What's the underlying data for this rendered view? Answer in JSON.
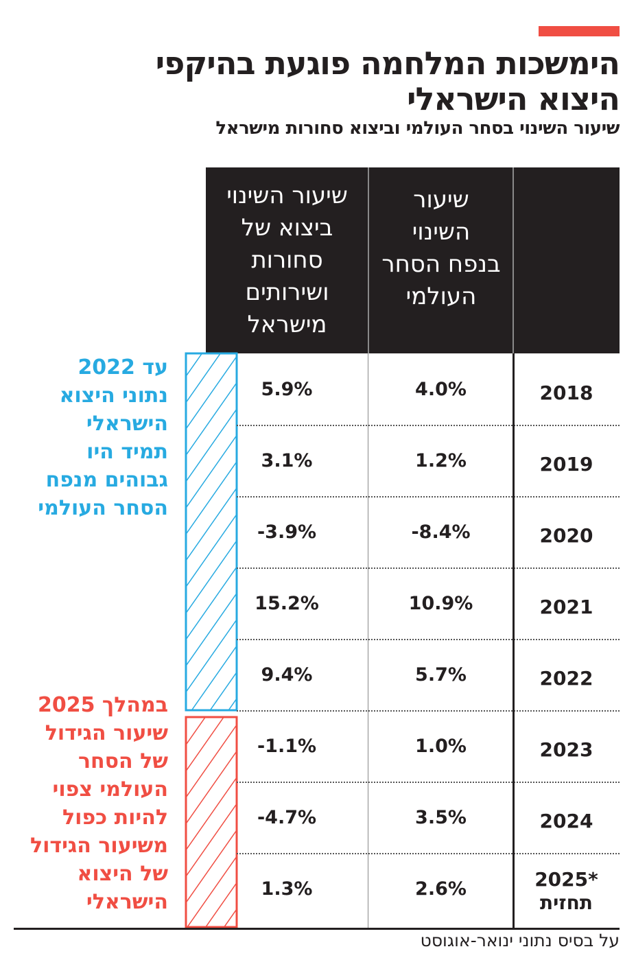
{
  "title_lines": [
    "הימשכות המלחמה פוגעת בהיקפי",
    "היצוא הישראלי"
  ],
  "subtitle": "שיעור השינוי בסחר העולמי וביצוא סחורות מישראל",
  "colors": {
    "accent_red": "#f04e43",
    "blue": "#27aae1",
    "header_bg": "#231f20"
  },
  "chart_data": {
    "type": "table",
    "columns": [
      "",
      "שיעור השינוי בנפח הסחר העולמי",
      "שיעור השינוי ביצוא של סחורות ושירותים מישראל"
    ],
    "rows": [
      {
        "year": "2018",
        "note": "",
        "world": "4.0%",
        "israel": "5.9%"
      },
      {
        "year": "2019",
        "note": "",
        "world": "1.2%",
        "israel": "3.1%"
      },
      {
        "year": "2020",
        "note": "",
        "world": "-8.4%",
        "israel": "-3.9%"
      },
      {
        "year": "2021",
        "note": "",
        "world": "10.9%",
        "israel": "15.2%"
      },
      {
        "year": "2022",
        "note": "",
        "world": "5.7%",
        "israel": "9.4%"
      },
      {
        "year": "2023",
        "note": "",
        "world": "1.0%",
        "israel": "-1.1%"
      },
      {
        "year": "2024",
        "note": "",
        "world": "3.5%",
        "israel": "-4.7%"
      },
      {
        "year": "2025*",
        "note": "תחזית",
        "world": "2.6%",
        "israel": "1.3%"
      }
    ]
  },
  "header": {
    "world_lines": [
      "שיעור",
      "השינוי",
      "בנפח הסחר",
      "העולמי"
    ],
    "israel_lines": [
      "שיעור השינוי",
      "ביצוא של",
      "סחורות",
      "ושירותים",
      "מישראל"
    ]
  },
  "annotations": {
    "blue_lines": [
      "עד 2022",
      "נתוני היצוא",
      "הישראלי",
      "תמיד היו",
      "גבוהים מנפח",
      "הסחר העולמי"
    ],
    "red_lines": [
      "במהלך 2025",
      "שיעור הגידול",
      "של הסחר",
      "העולמי צפוי",
      "להיות כפול",
      "משיעור הגידול",
      "של היצוא",
      "הישראלי"
    ]
  },
  "footnote": "על בסיס נתוני ינואר-אוגוסט"
}
